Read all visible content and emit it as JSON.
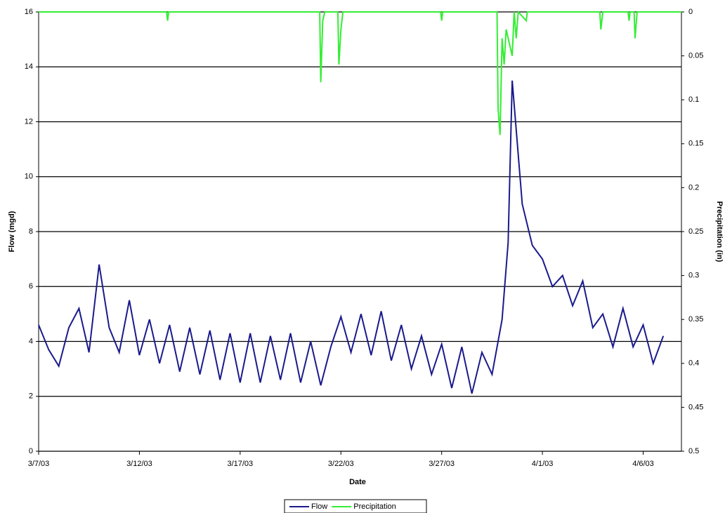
{
  "chart_data": {
    "type": "line",
    "x_label": "Date",
    "y_label": "Flow (mgd)",
    "y2_label": "Precipitation (in)",
    "xlim": [
      0,
      31.9
    ],
    "xticks": [
      {
        "value": 0,
        "label": "3/7/03"
      },
      {
        "value": 5,
        "label": "3/12/03"
      },
      {
        "value": 10,
        "label": "3/17/03"
      },
      {
        "value": 15,
        "label": "3/22/03"
      },
      {
        "value": 20,
        "label": "3/27/03"
      },
      {
        "value": 25,
        "label": "4/1/03"
      },
      {
        "value": 30,
        "label": "4/6/03"
      }
    ],
    "ylim": [
      0,
      16
    ],
    "yticks": [
      0,
      2,
      4,
      6,
      8,
      10,
      12,
      14,
      16
    ],
    "y2lim": [
      0.5,
      0
    ],
    "y2ticks": [
      0,
      0.05,
      0.1,
      0.15,
      0.2,
      0.25,
      0.3,
      0.35,
      0.4,
      0.45,
      0.5
    ],
    "grid": true,
    "legend": "bottom",
    "series": [
      {
        "name": "Flow",
        "color": "#1a1a8c",
        "x": [
          0,
          0.5,
          1,
          1.5,
          2,
          2.5,
          3,
          3.5,
          4,
          4.5,
          5,
          5.5,
          6,
          6.5,
          7,
          7.5,
          8,
          8.5,
          9,
          9.5,
          10,
          10.5,
          11,
          11.5,
          12,
          12.5,
          13,
          13.5,
          14,
          14.5,
          15,
          15.5,
          16,
          16.5,
          17,
          17.5,
          18,
          18.5,
          19,
          19.5,
          20,
          20.5,
          21,
          21.5,
          22,
          22.5,
          23,
          23.3,
          23.5,
          24,
          24.5,
          25,
          25.5,
          26,
          26.5,
          27,
          27.5,
          28,
          28.5,
          29,
          29.5,
          30,
          30.5,
          31
        ],
        "values": [
          4.6,
          3.7,
          3.1,
          4.5,
          5.2,
          3.6,
          6.8,
          4.5,
          3.6,
          5.5,
          3.5,
          4.8,
          3.2,
          4.6,
          2.9,
          4.5,
          2.8,
          4.4,
          2.6,
          4.3,
          2.5,
          4.3,
          2.5,
          4.2,
          2.6,
          4.3,
          2.5,
          4.0,
          2.4,
          3.8,
          4.9,
          3.6,
          5.0,
          3.5,
          5.1,
          3.3,
          4.6,
          3.0,
          4.2,
          2.8,
          3.9,
          2.3,
          3.8,
          2.1,
          3.6,
          2.8,
          4.8,
          7.6,
          13.5,
          9.0,
          7.5,
          7.0,
          6.0,
          6.4,
          5.3,
          6.2,
          4.5,
          5.0,
          3.8,
          5.2,
          3.8,
          4.6,
          3.2,
          4.2
        ]
      },
      {
        "name": "Precipitation",
        "color": "#33ee33",
        "axis": "y2",
        "x": [
          0,
          6.35,
          6.4,
          6.45,
          13.95,
          14,
          14.1,
          14.2,
          14.85,
          14.9,
          15,
          15.1,
          19.95,
          20,
          20.05,
          22.75,
          22.8,
          22.9,
          23,
          23.1,
          23.2,
          23.5,
          23.6,
          23.7,
          23.8,
          24.2,
          24.25,
          27.85,
          27.9,
          28,
          29.25,
          29.3,
          29.35,
          29.55,
          29.6,
          29.7,
          31.9
        ],
        "values": [
          0,
          0,
          0.01,
          0,
          0,
          0.08,
          0.01,
          0,
          0,
          0.06,
          0.02,
          0,
          0,
          0.01,
          0,
          0,
          0.11,
          0.14,
          0.03,
          0.06,
          0.02,
          0.05,
          0,
          0.03,
          0,
          0.01,
          0,
          0,
          0.02,
          0,
          0,
          0.01,
          0,
          0,
          0.03,
          0,
          0
        ]
      }
    ]
  }
}
